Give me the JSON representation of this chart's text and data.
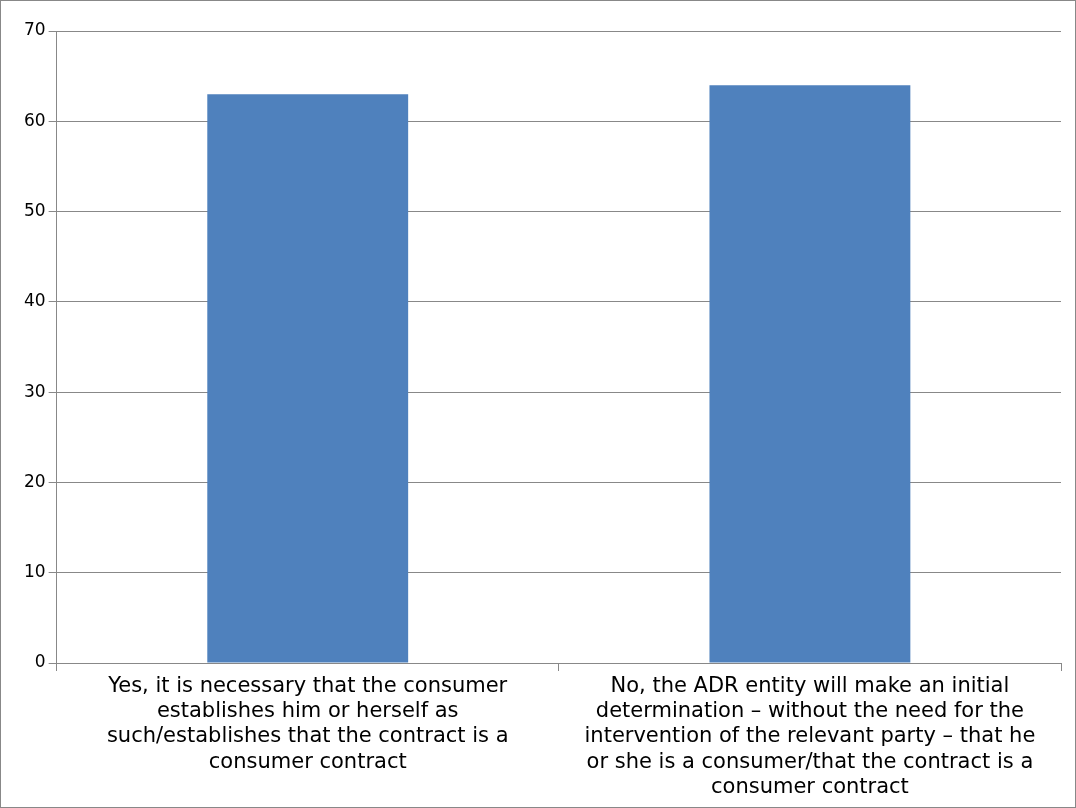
{
  "chart_data": {
    "type": "bar",
    "categories": [
      "Yes, it is necessary that the consumer establishes him or herself as such/establishes that the contract is a consumer contract",
      "No, the ADR entity will make an initial determination – without the need for the intervention of the relevant party – that he or she is a consumer/that the contract is a consumer contract"
    ],
    "values": [
      63,
      64
    ],
    "color": "#4f81bd",
    "ylim": [
      0,
      70
    ],
    "yticks": [
      0,
      10,
      20,
      30,
      40,
      50,
      60,
      70
    ],
    "grid": "y",
    "legend": false
  }
}
